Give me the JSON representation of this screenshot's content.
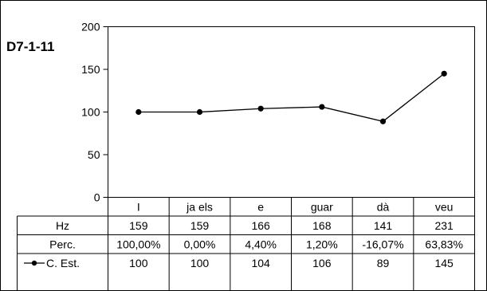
{
  "chart_data": {
    "type": "line",
    "title": "D7-1-11",
    "categories": [
      "I",
      "ja els",
      "e",
      "guar",
      "dà",
      "veu"
    ],
    "ylim": [
      0,
      200
    ],
    "yticks": [
      "0",
      "50",
      "100",
      "150",
      "200"
    ],
    "grid": false,
    "legend": "in data table",
    "series": [
      {
        "name": "C. Est.",
        "values": [
          100,
          100,
          104,
          106,
          89,
          145
        ],
        "color": "#000000"
      }
    ],
    "table": {
      "rows": [
        {
          "label": "Hz",
          "values": [
            "159",
            "159",
            "166",
            "168",
            "141",
            "231"
          ]
        },
        {
          "label": "Perc.",
          "values": [
            "100,00%",
            "0,00%",
            "4,40%",
            "1,20%",
            "-16,07%",
            "63,83%"
          ]
        },
        {
          "label": "C. Est.",
          "values": [
            "100",
            "100",
            "104",
            "106",
            "89",
            "145"
          ]
        }
      ]
    }
  }
}
